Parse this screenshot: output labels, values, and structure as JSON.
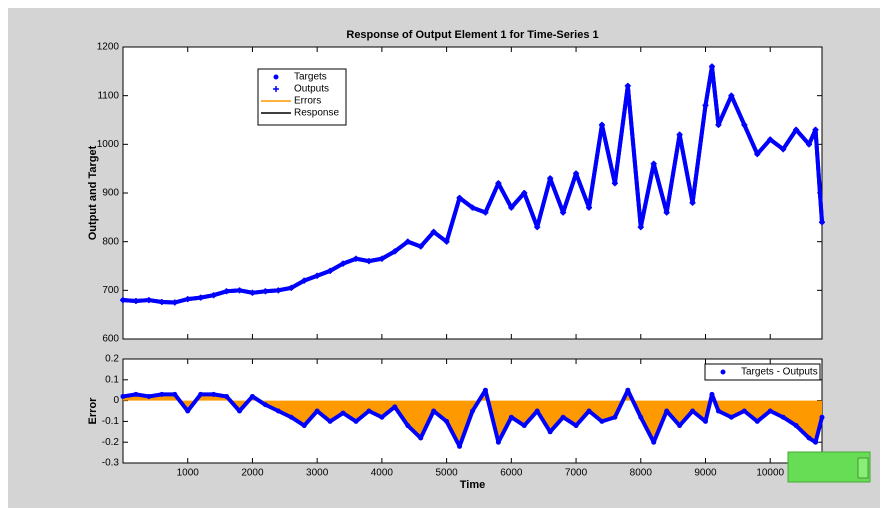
{
  "chart_data": [
    {
      "type": "line",
      "title": "Response of Output Element 1 for Time-Series 1",
      "ylabel": "Output and Target",
      "x": [
        0,
        200,
        400,
        600,
        800,
        1000,
        1200,
        1400,
        1600,
        1800,
        2000,
        2200,
        2400,
        2600,
        2800,
        3000,
        3200,
        3400,
        3600,
        3800,
        4000,
        4200,
        4400,
        4600,
        4800,
        5000,
        5200,
        5400,
        5600,
        5800,
        6000,
        6200,
        6400,
        6600,
        6800,
        7000,
        7200,
        7400,
        7600,
        7800,
        8000,
        8200,
        8400,
        8600,
        8800,
        9000,
        9100,
        9200,
        9400,
        9600,
        9800,
        10000,
        10200,
        10400,
        10600,
        10700,
        10800
      ],
      "series": [
        {
          "name": "Targets",
          "color": "#0000ff",
          "marker": "dot",
          "values": [
            680,
            678,
            680,
            676,
            675,
            682,
            685,
            690,
            698,
            700,
            695,
            698,
            700,
            705,
            720,
            730,
            740,
            755,
            765,
            760,
            765,
            780,
            800,
            790,
            820,
            800,
            890,
            870,
            860,
            920,
            870,
            900,
            830,
            930,
            860,
            940,
            870,
            1040,
            920,
            1120,
            830,
            960,
            860,
            1020,
            880,
            1080,
            1160,
            1040,
            1100,
            1040,
            980,
            1010,
            990,
            1030,
            1000,
            1030,
            840
          ]
        },
        {
          "name": "Outputs",
          "color": "#0000ff",
          "marker": "plus",
          "values": [
            680,
            678,
            680,
            676,
            675,
            682,
            685,
            690,
            698,
            700,
            695,
            698,
            700,
            705,
            720,
            730,
            740,
            755,
            765,
            760,
            765,
            780,
            800,
            790,
            820,
            800,
            890,
            870,
            860,
            920,
            870,
            900,
            830,
            930,
            860,
            940,
            870,
            1040,
            920,
            1120,
            830,
            960,
            860,
            1020,
            880,
            1080,
            1160,
            1040,
            1100,
            1040,
            980,
            1010,
            990,
            1030,
            1000,
            1030,
            840
          ]
        }
      ],
      "legend": [
        {
          "name": "Targets",
          "color": "#0000ff",
          "marker": "dot"
        },
        {
          "name": "Outputs",
          "color": "#0000ff",
          "marker": "plus"
        },
        {
          "name": "Errors",
          "color": "#ff9900",
          "marker": "line"
        },
        {
          "name": "Response",
          "color": "#000000",
          "marker": "line"
        }
      ],
      "xlim": [
        0,
        10800
      ],
      "xticks": [
        1000,
        2000,
        3000,
        4000,
        5000,
        6000,
        7000,
        8000,
        9000,
        10000
      ],
      "show_xtick_labels": false,
      "ylim": [
        600,
        1200
      ],
      "yticks": [
        600,
        700,
        800,
        900,
        1000,
        1100,
        1200
      ]
    },
    {
      "type": "line",
      "xlabel": "Time",
      "ylabel": "Error",
      "fill_color": "#ff9900",
      "x": [
        0,
        200,
        400,
        600,
        800,
        1000,
        1200,
        1400,
        1600,
        1800,
        2000,
        2200,
        2400,
        2600,
        2800,
        3000,
        3200,
        3400,
        3600,
        3800,
        4000,
        4200,
        4400,
        4600,
        4800,
        5000,
        5200,
        5400,
        5600,
        5800,
        6000,
        6200,
        6400,
        6600,
        6800,
        7000,
        7200,
        7400,
        7600,
        7800,
        8000,
        8200,
        8400,
        8600,
        8800,
        9000,
        9100,
        9200,
        9400,
        9600,
        9800,
        10000,
        10200,
        10400,
        10600,
        10700,
        10800
      ],
      "series": [
        {
          "name": "Targets - Outputs",
          "color": "#0000ff",
          "marker": "dot",
          "values": [
            0.02,
            0.03,
            0.02,
            0.03,
            0.03,
            -0.05,
            0.03,
            0.03,
            0.02,
            -0.05,
            0.02,
            -0.02,
            -0.05,
            -0.08,
            -0.12,
            -0.05,
            -0.1,
            -0.06,
            -0.1,
            -0.05,
            -0.08,
            -0.03,
            -0.12,
            -0.18,
            -0.05,
            -0.1,
            -0.22,
            -0.05,
            0.05,
            -0.2,
            -0.08,
            -0.12,
            -0.05,
            -0.15,
            -0.08,
            -0.12,
            -0.05,
            -0.1,
            -0.08,
            0.05,
            -0.08,
            -0.2,
            -0.05,
            -0.12,
            -0.05,
            -0.1,
            0.03,
            -0.05,
            -0.08,
            -0.05,
            -0.1,
            -0.05,
            -0.08,
            -0.12,
            -0.18,
            -0.2,
            -0.08
          ]
        }
      ],
      "xlim": [
        0,
        10800
      ],
      "xticks": [
        1000,
        2000,
        3000,
        4000,
        5000,
        6000,
        7000,
        8000,
        9000,
        10000
      ],
      "show_xtick_labels": true,
      "ylim": [
        -0.3,
        0.2
      ],
      "yticks": [
        -0.3,
        -0.2,
        -0.1,
        0,
        0.1,
        0.2
      ]
    }
  ]
}
